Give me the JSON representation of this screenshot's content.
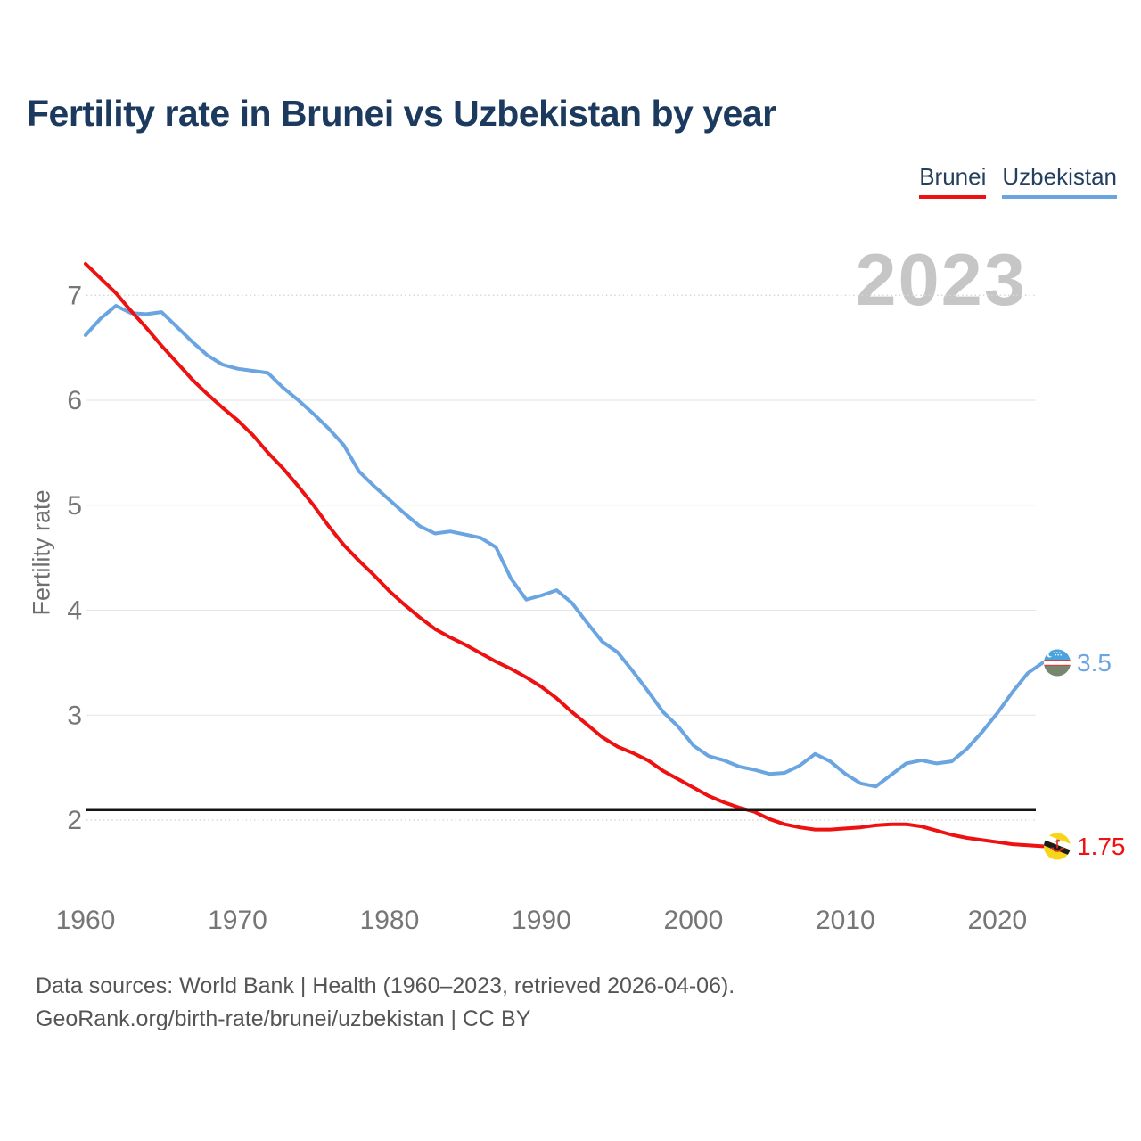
{
  "header": {
    "title": "Fertility rate in Brunei vs Uzbekistan by year"
  },
  "legend": {
    "items": [
      {
        "label": "Brunei",
        "color": "#ee1111"
      },
      {
        "label": "Uzbekistan",
        "color": "#6aa5e2"
      }
    ]
  },
  "watermark": "2023",
  "chart_data": {
    "type": "line",
    "title": "Fertility rate in Brunei vs Uzbekistan by year",
    "xlabel": "",
    "ylabel": "Fertility rate",
    "xlim": [
      1960,
      2023
    ],
    "ylim": [
      1.5,
      7.5
    ],
    "grid": true,
    "legend_position": "top-right",
    "x_ticks": [
      1960,
      1970,
      1980,
      1990,
      2000,
      2010,
      2020
    ],
    "y_ticks": [
      {
        "value": 7,
        "style": "dotted"
      },
      {
        "value": 6,
        "style": "solid"
      },
      {
        "value": 5,
        "style": "solid"
      },
      {
        "value": 4,
        "style": "solid"
      },
      {
        "value": 3,
        "style": "solid"
      },
      {
        "value": 2,
        "style": "dotted"
      }
    ],
    "reference_line": {
      "value": 2.1,
      "color": "#141414"
    },
    "x": [
      1960,
      1961,
      1962,
      1963,
      1964,
      1965,
      1966,
      1967,
      1968,
      1969,
      1970,
      1971,
      1972,
      1973,
      1974,
      1975,
      1976,
      1977,
      1978,
      1979,
      1980,
      1981,
      1982,
      1983,
      1984,
      1985,
      1986,
      1987,
      1988,
      1989,
      1990,
      1991,
      1992,
      1993,
      1994,
      1995,
      1996,
      1997,
      1998,
      1999,
      2000,
      2001,
      2002,
      2003,
      2004,
      2005,
      2006,
      2007,
      2008,
      2009,
      2010,
      2011,
      2012,
      2013,
      2014,
      2015,
      2016,
      2017,
      2018,
      2019,
      2020,
      2021,
      2022,
      2023
    ],
    "series": [
      {
        "name": "Brunei",
        "color": "#ee1111",
        "end_label": "1.75",
        "end_year": 2023,
        "values": [
          7.3,
          7.16,
          7.02,
          6.85,
          6.69,
          6.52,
          6.36,
          6.2,
          6.06,
          5.93,
          5.81,
          5.67,
          5.5,
          5.35,
          5.18,
          5.0,
          4.8,
          4.62,
          4.47,
          4.33,
          4.18,
          4.05,
          3.93,
          3.82,
          3.74,
          3.67,
          3.59,
          3.51,
          3.44,
          3.36,
          3.27,
          3.16,
          3.03,
          2.91,
          2.79,
          2.7,
          2.64,
          2.57,
          2.47,
          2.39,
          2.31,
          2.23,
          2.17,
          2.12,
          2.08,
          2.01,
          1.96,
          1.93,
          1.91,
          1.91,
          1.92,
          1.93,
          1.95,
          1.96,
          1.96,
          1.94,
          1.9,
          1.86,
          1.83,
          1.81,
          1.79,
          1.77,
          1.76,
          1.75
        ]
      },
      {
        "name": "Uzbekistan",
        "color": "#6aa5e2",
        "end_label": "3.5",
        "end_year": 2023,
        "values": [
          6.62,
          6.78,
          6.9,
          6.83,
          6.82,
          6.84,
          6.7,
          6.56,
          6.43,
          6.34,
          6.3,
          6.28,
          6.26,
          6.12,
          6.0,
          5.87,
          5.73,
          5.57,
          5.32,
          5.18,
          5.05,
          4.92,
          4.8,
          4.73,
          4.75,
          4.72,
          4.69,
          4.6,
          4.3,
          4.1,
          4.14,
          4.19,
          4.07,
          3.88,
          3.7,
          3.6,
          3.42,
          3.23,
          3.03,
          2.89,
          2.71,
          2.61,
          2.57,
          2.51,
          2.48,
          2.44,
          2.45,
          2.52,
          2.63,
          2.56,
          2.44,
          2.35,
          2.32,
          2.43,
          2.54,
          2.57,
          2.54,
          2.56,
          2.68,
          2.84,
          3.02,
          3.22,
          3.4,
          3.5
        ]
      }
    ]
  },
  "icons": {
    "uzbekistan_flag": {
      "blue": "#4aa3dd",
      "white": "#ffffff",
      "red": "#d54040",
      "green": "#77876f"
    },
    "brunei_flag": {
      "yellow": "#f7d51b",
      "white": "#ffffff",
      "black": "#1c1c1c",
      "red": "#dc2c20"
    }
  },
  "end_labels": {
    "uzbekistan": "3.5",
    "brunei": "1.75"
  },
  "footer": {
    "line1": "Data sources: World Bank | Health (1960–2023, retrieved 2026-04-06).",
    "line2": "GeoRank.org/birth-rate/brunei/uzbekistan | CC BY"
  }
}
